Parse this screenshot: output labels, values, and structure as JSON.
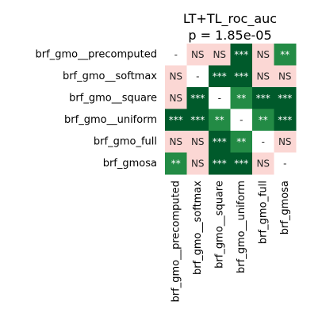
{
  "chart_data": {
    "type": "heatmap",
    "title": "LT+TL_roc_auc",
    "subtitle": "p = 1.85e-05",
    "rows": [
      "brf_gmo__precomputed",
      "brf_gmo__softmax",
      "brf_gmo__square",
      "brf_gmo__uniform",
      "brf_gmo_full",
      "brf_gmosa"
    ],
    "columns": [
      "brf_gmo__precomputed",
      "brf_gmo__softmax",
      "brf_gmo__square",
      "brf_gmo__uniform",
      "brf_gmo_full",
      "brf_gmosa"
    ],
    "cells": [
      [
        "-",
        "NS",
        "NS",
        "***",
        "NS",
        "**"
      ],
      [
        "NS",
        "-",
        "***",
        "***",
        "NS",
        "NS"
      ],
      [
        "NS",
        "***",
        "-",
        "**",
        "***",
        "***"
      ],
      [
        "***",
        "***",
        "**",
        "-",
        "**",
        "***"
      ],
      [
        "NS",
        "NS",
        "***",
        "**",
        "-",
        "NS"
      ],
      [
        "**",
        "NS",
        "***",
        "***",
        "NS",
        "-"
      ]
    ],
    "colors": {
      "diagonal": "#ffffff",
      "NS": "#fbd7d4",
      "*": "#4fb06b",
      "**": "#238b45",
      "***": "#005a2b",
      "text_dark": "#262626",
      "text_light": "#ffffff"
    }
  }
}
